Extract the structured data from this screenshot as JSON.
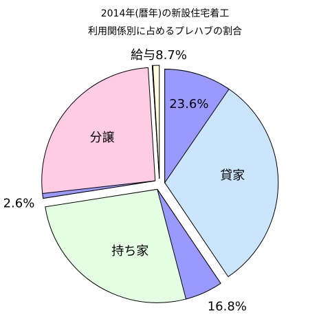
{
  "chart_data": {
    "type": "pie",
    "title": "2014年(暦年)の新設住宅着工",
    "subtitle": "利用関係別に占めるプレハブの割合",
    "categories": [
      "貸家",
      "持ち家",
      "分譲",
      "給与"
    ],
    "values": [
      40.6,
      32.0,
      26.5,
      1.0
    ],
    "colors": [
      "#cce5ff",
      "#e5ffe5",
      "#ffcce5",
      "#ffffe0"
    ],
    "prefab": {
      "values": [
        23.6,
        16.8,
        2.6,
        8.7
      ],
      "value_labels": [
        "23.6%",
        "16.8%",
        "2.6%",
        "8.7%"
      ],
      "color": "#9999ff"
    },
    "exploded": true
  }
}
